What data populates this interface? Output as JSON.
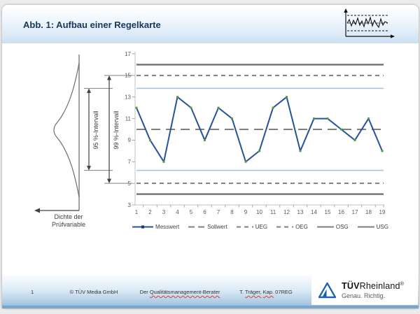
{
  "slide": {
    "title": "Abb. 1: Aufbau einer Regelkarte"
  },
  "icons": {
    "header": "control-chart-icon",
    "logo": "tuv-triangle-icon"
  },
  "left_figure": {
    "interval_95_label": "95 %-Intervall",
    "interval_99_label": "99 %-Intervall",
    "interval_95": [
      6.2,
      13.8
    ],
    "interval_99": [
      5,
      15
    ],
    "density_label_line1": "Dichte der",
    "density_label_line2": "Prüfvariable"
  },
  "chart_data": {
    "type": "line",
    "title": "",
    "xlabel": "",
    "ylabel": "",
    "x": [
      1,
      2,
      3,
      4,
      5,
      6,
      7,
      8,
      9,
      10,
      11,
      12,
      13,
      14,
      15,
      16,
      17,
      18,
      19
    ],
    "series": [
      {
        "name": "Messwert",
        "values": [
          12,
          9,
          7,
          13,
          12,
          9,
          12,
          11,
          7,
          8,
          12,
          13,
          8,
          11,
          11,
          10,
          9,
          11,
          8
        ],
        "color": "#27539b",
        "marker_color": "#569a33"
      }
    ],
    "reference_lines": [
      {
        "name": "OSG",
        "value": 16,
        "style": "solid",
        "color": "#6f6f6f",
        "width": 2.3
      },
      {
        "name": "OEG",
        "value": 15,
        "style": "dashed",
        "color": "#7f7f7f",
        "width": 2
      },
      {
        "name": "interval95-upper",
        "value": 13.8,
        "style": "solid",
        "color": "#9dc3e6",
        "width": 1.4
      },
      {
        "name": "Sollwert",
        "value": 10,
        "style": "long-dash",
        "color": "#7f7f7f",
        "width": 2
      },
      {
        "name": "interval95-lower",
        "value": 6.2,
        "style": "solid",
        "color": "#9dc3e6",
        "width": 1.4
      },
      {
        "name": "UEG",
        "value": 5,
        "style": "dashed",
        "color": "#7f7f7f",
        "width": 2
      },
      {
        "name": "USG",
        "value": 4,
        "style": "solid",
        "color": "#6f6f6f",
        "width": 2.3
      }
    ],
    "ylim": [
      3,
      17
    ],
    "yticks": [
      3,
      5,
      7,
      9,
      11,
      13,
      15,
      17
    ],
    "grid": false,
    "legend_position": "bottom",
    "legend": [
      {
        "label": "Messwert",
        "swatch": "line-marker",
        "color": "#27539b"
      },
      {
        "label": "Sollwert",
        "swatch": "long-dash",
        "color": "#7f7f7f"
      },
      {
        "label": "UEG",
        "swatch": "dashed",
        "color": "#7f7f7f"
      },
      {
        "label": "OEG",
        "swatch": "dashed",
        "color": "#7f7f7f"
      },
      {
        "label": "OSG",
        "swatch": "solid",
        "color": "#7f7f7f"
      },
      {
        "label": "USG",
        "swatch": "solid",
        "color": "#7f7f7f"
      }
    ]
  },
  "footer": {
    "page_number": "1",
    "copyright": "© TÜV Media GmbH",
    "publication_segments": [
      {
        "text": "Der ",
        "marked": false
      },
      {
        "text": "Qualitätsmanagement-Berater",
        "marked": true
      }
    ],
    "author_segments": [
      {
        "text": "T. ",
        "marked": false
      },
      {
        "text": "Träger,",
        "marked": true
      },
      {
        "text": " ",
        "marked": false
      },
      {
        "text": "Kap.",
        "marked": true
      },
      {
        "text": " 07REG",
        "marked": false
      }
    ],
    "logo": {
      "tuv": "TÜV",
      "rheinland": "Rheinland",
      "reg": "®",
      "tagline": "Genau. Richtig."
    }
  },
  "colors": {
    "banner_from": "#ffffff",
    "banner_to": "#cce0f2",
    "title": "#17365d",
    "footer_to": "#8ab4d8",
    "logo_blue": "#1c63ad",
    "spellcheck": "#e0392e",
    "axis": "#c3c3c3",
    "tick_label": "#595959"
  }
}
